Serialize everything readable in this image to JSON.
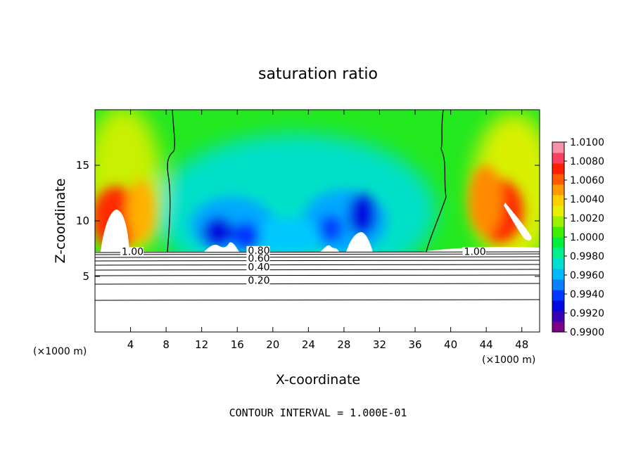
{
  "chart_data": {
    "type": "heatmap",
    "title": "saturation ratio",
    "xlabel": "X-coordinate",
    "ylabel": "Z-coordinate",
    "x_unit_left": "(×1000 m)",
    "x_unit_right": "(×1000 m)",
    "xlim": [
      0,
      50
    ],
    "ylim": [
      0,
      20
    ],
    "x_ticks": [
      4,
      8,
      12,
      16,
      20,
      24,
      28,
      32,
      36,
      40,
      44,
      48
    ],
    "y_ticks": [
      5,
      10,
      15
    ],
    "footer": "CONTOUR INTERVAL = 1.000E-01",
    "colorbar": {
      "labels": [
        "1.0100",
        "1.0080",
        "1.0060",
        "1.0040",
        "1.0020",
        "1.0000",
        "0.9980",
        "0.9960",
        "0.9940",
        "0.9920",
        "0.9900"
      ],
      "colors": [
        "#7a008a",
        "#3c00b4",
        "#0008e0",
        "#0038ff",
        "#0a80ff",
        "#00b8ff",
        "#00e0d0",
        "#00f090",
        "#00f040",
        "#40f000",
        "#9cf000",
        "#e8f000",
        "#ffd000",
        "#ff9a00",
        "#ff5a00",
        "#ff1e00",
        "#f84060",
        "#f890a8"
      ]
    },
    "contours": [
      {
        "level": 1.0,
        "label": "1.00",
        "label_x": 3.0,
        "label_x2": 41.5,
        "label_y": 7.0
      },
      {
        "level": 0.8,
        "label": "0.80",
        "label_x": 17.2,
        "label_y": 7.1
      },
      {
        "level": 0.6,
        "label": "0.60",
        "label_x": 17.2,
        "label_y": 6.4
      },
      {
        "level": 0.4,
        "label": "0.40",
        "label_x": 17.2,
        "label_y": 5.6
      },
      {
        "level": 0.2,
        "label": "0.20",
        "label_x": 17.2,
        "label_y": 4.4
      }
    ]
  }
}
